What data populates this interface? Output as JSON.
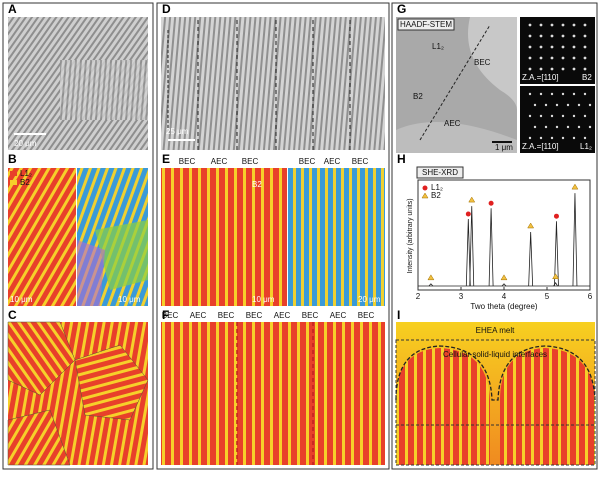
{
  "panels": {
    "A": {
      "label": "A",
      "scale_bar": "20 μm"
    },
    "B": {
      "label": "B",
      "legend": [
        "L1₂",
        "B2"
      ],
      "scale_bars": [
        "10 μm",
        "10 μm"
      ]
    },
    "C": {
      "label": "C"
    },
    "D": {
      "label": "D",
      "scale_bar": "25 μm"
    },
    "E": {
      "label": "E",
      "region_labels": [
        "BEC",
        "AEC",
        "BEC",
        "BEC",
        "AEC",
        "BEC"
      ],
      "phase_label": "B2",
      "scale_bars": [
        "10 μm",
        "20 μm"
      ]
    },
    "F": {
      "label": "F",
      "region_labels": [
        "BEC",
        "AEC",
        "BEC",
        "BEC",
        "AEC",
        "BEC",
        "AEC",
        "BEC"
      ]
    },
    "G": {
      "label": "G",
      "method": "HAADF-STEM",
      "region_labels": [
        "L1₂",
        "BEC",
        "B2",
        "AEC"
      ],
      "scale_bar": "1 μm",
      "zone_axes": [
        "Z.A.=[110]",
        "Z.A.=[110]"
      ],
      "phases": [
        "B2",
        "L1₂"
      ]
    },
    "I": {
      "label": "I",
      "texts": [
        "EHEA melt",
        "Cellular solid-liquid interfaces"
      ]
    }
  },
  "chart_data": {
    "type": "scatter",
    "panel_label": "H",
    "title": "SHE-XRD",
    "x_label": "Two theta (degree)",
    "y_label": "Intensity (arbitrary units)",
    "xlim": [
      2,
      6
    ],
    "xticks": [
      2,
      3,
      4,
      5,
      6
    ],
    "ylim": [
      0,
      1
    ],
    "series": [
      {
        "name": "L1₂",
        "color": "#e02020",
        "marker": "circle",
        "x": [
          3.17,
          3.7,
          5.22
        ],
        "values": [
          0.62,
          0.72,
          0.6
        ]
      },
      {
        "name": "B2",
        "color": "#f2c040",
        "marker": "triangle",
        "x": [
          2.3,
          3.25,
          4.0,
          4.62,
          5.2,
          5.65
        ],
        "values": [
          0.02,
          0.74,
          0.02,
          0.5,
          0.03,
          0.86
        ]
      }
    ]
  }
}
